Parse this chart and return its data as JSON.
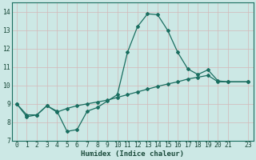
{
  "xlabel": "Humidex (Indice chaleur)",
  "bg_color": "#cce8e5",
  "grid_color": "#b0d4d0",
  "line_color": "#1a6e60",
  "xlim": [
    -0.5,
    23.5
  ],
  "ylim": [
    7,
    14.5
  ],
  "yticks": [
    7,
    8,
    9,
    10,
    11,
    12,
    13,
    14
  ],
  "xtick_positions": [
    0,
    1,
    2,
    3,
    4,
    5,
    6,
    7,
    8,
    9,
    10,
    11,
    12,
    13,
    14,
    15,
    16,
    17,
    18,
    19,
    20,
    21,
    23
  ],
  "xtick_labels": [
    "0",
    "1",
    "2",
    "3",
    "4",
    "5",
    "6",
    "7",
    "8",
    "9",
    "10",
    "11",
    "12",
    "13",
    "14",
    "15",
    "16",
    "17",
    "18",
    "19",
    "20",
    "21",
    "23"
  ],
  "series1_x": [
    0,
    1,
    2,
    3,
    4,
    5,
    6,
    7,
    8,
    9,
    10,
    11,
    12,
    13,
    14,
    15,
    16,
    17,
    18,
    19,
    20,
    21,
    23
  ],
  "series1_y": [
    9.0,
    8.3,
    8.4,
    8.9,
    8.6,
    7.5,
    7.6,
    8.6,
    8.8,
    9.15,
    9.5,
    11.8,
    13.2,
    13.9,
    13.85,
    13.0,
    11.8,
    10.9,
    10.6,
    10.85,
    10.25,
    10.2,
    10.2
  ],
  "series2_x": [
    0,
    1,
    2,
    3,
    4,
    5,
    6,
    7,
    8,
    9,
    10,
    11,
    12,
    13,
    14,
    15,
    16,
    17,
    18,
    19,
    20,
    21,
    23
  ],
  "series2_y": [
    9.0,
    8.4,
    8.4,
    8.9,
    8.55,
    8.75,
    8.9,
    9.0,
    9.1,
    9.2,
    9.35,
    9.5,
    9.65,
    9.8,
    9.95,
    10.08,
    10.2,
    10.35,
    10.45,
    10.55,
    10.2,
    10.2,
    10.2
  ]
}
